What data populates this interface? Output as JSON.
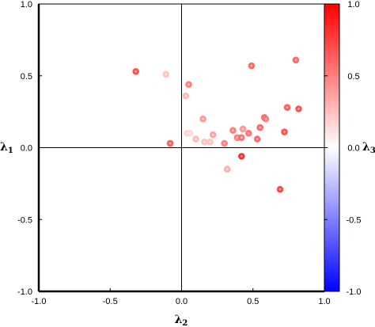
{
  "chart_data": {
    "type": "scatter",
    "title": "",
    "xlabel": "λ",
    "xlabel_sub": "2",
    "ylabel": "λ",
    "ylabel_sub": "1",
    "colorbar_label": "λ",
    "colorbar_label_sub": "3",
    "xlim": [
      -1.0,
      1.0
    ],
    "ylim": [
      -1.0,
      1.0
    ],
    "clim": [
      -1.0,
      1.0
    ],
    "x_ticks": [
      "-1.0",
      "-0.5",
      "0.0",
      "0.5",
      "1.0"
    ],
    "y_ticks": [
      "-1.0",
      "-0.5",
      "0.0",
      "0.5",
      "1.0"
    ],
    "colorbar_ticks": [
      "-1.0",
      "-0.5",
      "0.0",
      "0.5",
      "1.0"
    ],
    "colormap": "bwr",
    "colors": {
      "low": "#0000ff",
      "mid": "#ffffff",
      "high": "#ff0000"
    },
    "zero_lines": true,
    "grid": false,
    "points": [
      {
        "x": -0.32,
        "y": 0.53,
        "c": 0.75
      },
      {
        "x": -0.11,
        "y": 0.51,
        "c": 0.25
      },
      {
        "x": 0.05,
        "y": 0.44,
        "c": 0.55
      },
      {
        "x": 0.03,
        "y": 0.36,
        "c": 0.3
      },
      {
        "x": 0.49,
        "y": 0.57,
        "c": 0.65
      },
      {
        "x": 0.8,
        "y": 0.61,
        "c": 0.65
      },
      {
        "x": 0.74,
        "y": 0.28,
        "c": 0.7
      },
      {
        "x": 0.82,
        "y": 0.27,
        "c": 0.75
      },
      {
        "x": 0.58,
        "y": 0.21,
        "c": 0.65
      },
      {
        "x": 0.59,
        "y": 0.2,
        "c": 0.55
      },
      {
        "x": 0.15,
        "y": 0.2,
        "c": 0.45
      },
      {
        "x": 0.36,
        "y": 0.12,
        "c": 0.55
      },
      {
        "x": 0.43,
        "y": 0.13,
        "c": 0.45
      },
      {
        "x": 0.55,
        "y": 0.14,
        "c": 0.65
      },
      {
        "x": 0.47,
        "y": 0.1,
        "c": 0.6
      },
      {
        "x": 0.72,
        "y": 0.11,
        "c": 0.75
      },
      {
        "x": 0.04,
        "y": 0.1,
        "c": 0.2
      },
      {
        "x": 0.06,
        "y": 0.1,
        "c": 0.15
      },
      {
        "x": 0.22,
        "y": 0.09,
        "c": 0.4
      },
      {
        "x": 0.1,
        "y": 0.06,
        "c": 0.3
      },
      {
        "x": 0.16,
        "y": 0.04,
        "c": 0.25
      },
      {
        "x": 0.2,
        "y": 0.04,
        "c": 0.25
      },
      {
        "x": 0.39,
        "y": 0.07,
        "c": 0.55
      },
      {
        "x": 0.42,
        "y": 0.07,
        "c": 0.6
      },
      {
        "x": 0.53,
        "y": 0.06,
        "c": 0.65
      },
      {
        "x": 0.3,
        "y": 0.03,
        "c": 0.55
      },
      {
        "x": -0.08,
        "y": 0.03,
        "c": 0.7
      },
      {
        "x": 0.42,
        "y": -0.06,
        "c": 0.9
      },
      {
        "x": 0.32,
        "y": -0.15,
        "c": 0.35
      },
      {
        "x": 0.69,
        "y": -0.29,
        "c": 0.8
      }
    ]
  }
}
